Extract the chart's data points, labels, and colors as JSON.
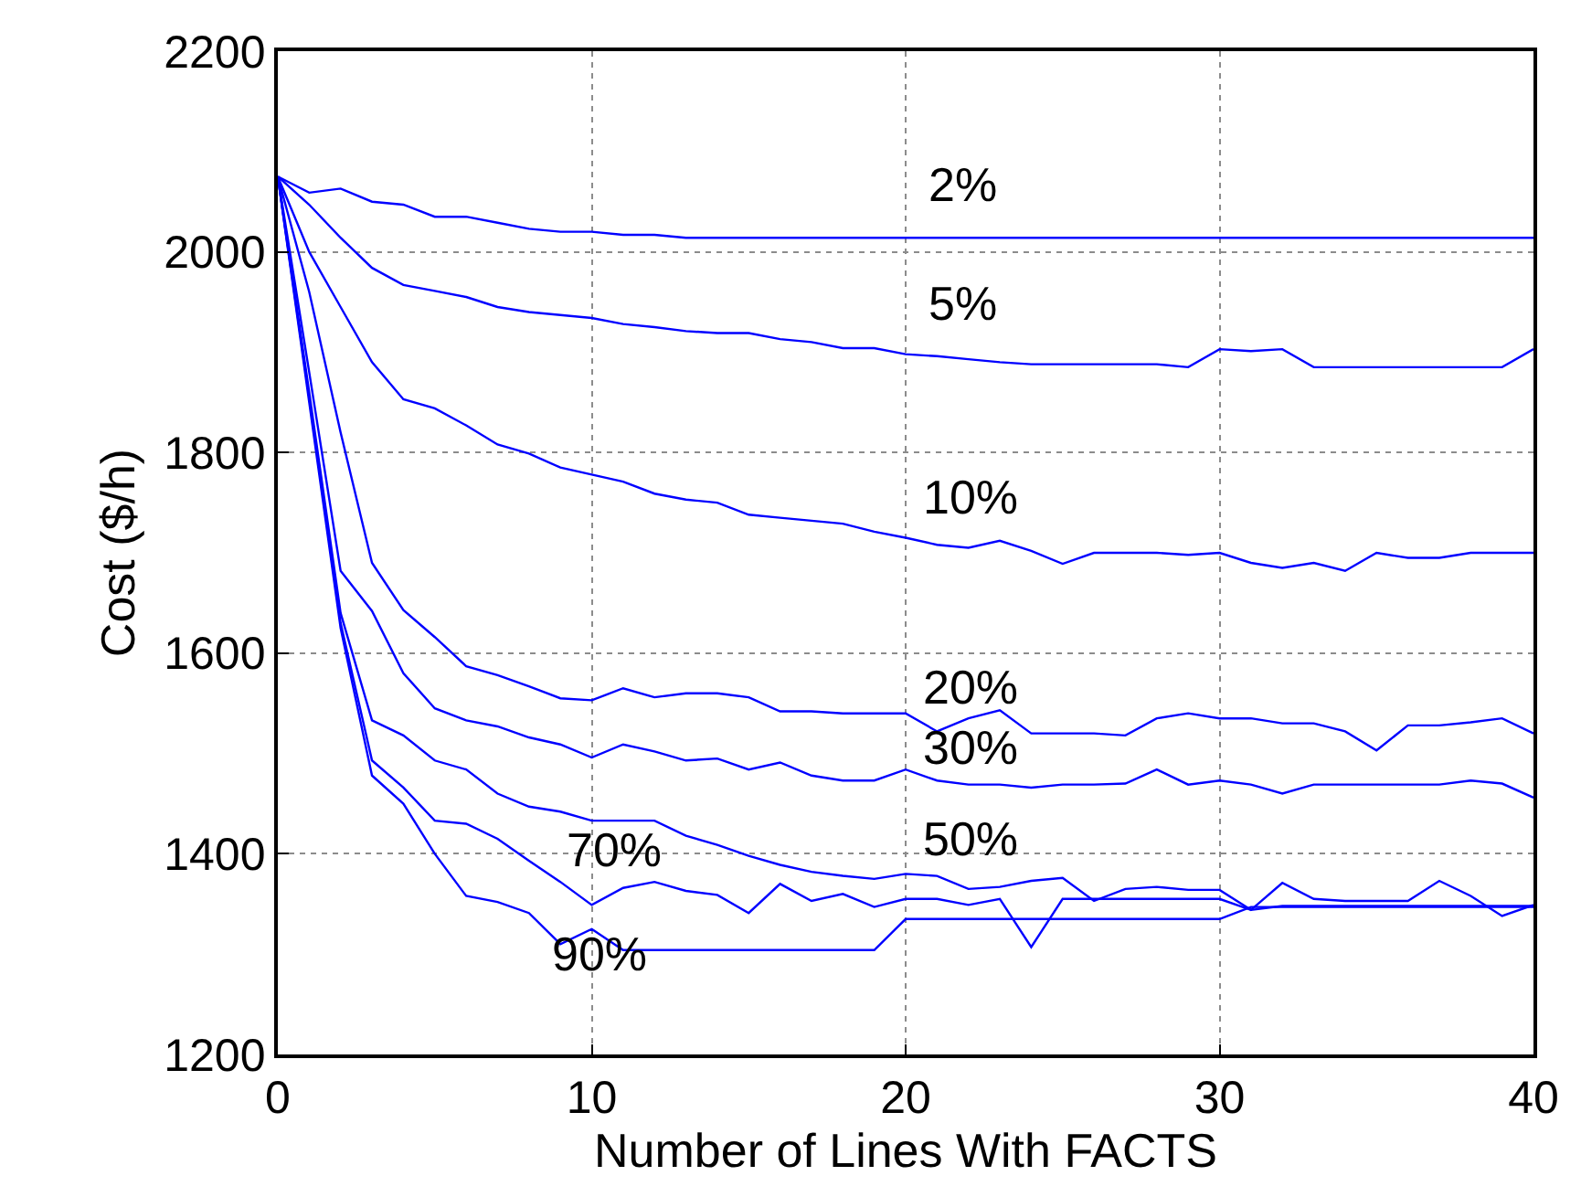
{
  "chart_data": {
    "type": "line",
    "xlabel": "Number of Lines With FACTS",
    "ylabel": "Cost ($/h)",
    "x": [
      0,
      1,
      2,
      3,
      4,
      5,
      6,
      7,
      8,
      9,
      10,
      11,
      12,
      13,
      14,
      15,
      16,
      17,
      18,
      19,
      20,
      21,
      22,
      23,
      24,
      25,
      26,
      27,
      28,
      29,
      30,
      31,
      32,
      33,
      34,
      35,
      36,
      37,
      38,
      39,
      40
    ],
    "series": [
      {
        "name": "2%",
        "color": "#0000ff",
        "values": [
          2075,
          2059,
          2063,
          2050,
          2047,
          2035,
          2035,
          2029,
          2023,
          2020,
          2020,
          2017,
          2017,
          2014,
          2014,
          2014,
          2014,
          2014,
          2014,
          2014,
          2014,
          2014,
          2014,
          2014,
          2014,
          2014,
          2014,
          2014,
          2014,
          2014,
          2014,
          2014,
          2014,
          2014,
          2014,
          2014,
          2014,
          2014,
          2014,
          2014,
          2014
        ]
      },
      {
        "name": "5%",
        "color": "#0000ff",
        "values": [
          2075,
          2047,
          2014,
          1984,
          1967,
          1961,
          1955,
          1945,
          1940,
          1937,
          1934,
          1928,
          1925,
          1921,
          1919,
          1919,
          1913,
          1910,
          1904,
          1904,
          1898,
          1896,
          1893,
          1890,
          1888,
          1888,
          1888,
          1888,
          1888,
          1885,
          1903,
          1901,
          1903,
          1885,
          1885,
          1885,
          1885,
          1885,
          1885,
          1885,
          1903
        ]
      },
      {
        "name": "10%",
        "color": "#0000ff",
        "values": [
          2075,
          2000,
          1945,
          1890,
          1853,
          1844,
          1827,
          1808,
          1799,
          1785,
          1778,
          1771,
          1759,
          1753,
          1750,
          1738,
          1735,
          1732,
          1729,
          1721,
          1715,
          1708,
          1705,
          1712,
          1702,
          1689,
          1700,
          1700,
          1700,
          1698,
          1700,
          1690,
          1685,
          1690,
          1682,
          1700,
          1695,
          1695,
          1700,
          1700,
          1700
        ]
      },
      {
        "name": "20%",
        "color": "#0000ff",
        "values": [
          2075,
          1960,
          1820,
          1690,
          1643,
          1616,
          1587,
          1578,
          1567,
          1555,
          1553,
          1565,
          1556,
          1560,
          1560,
          1556,
          1542,
          1542,
          1540,
          1540,
          1540,
          1522,
          1535,
          1543,
          1520,
          1520,
          1520,
          1518,
          1535,
          1540,
          1535,
          1535,
          1530,
          1530,
          1522,
          1503,
          1528,
          1528,
          1531,
          1535,
          1520
        ]
      },
      {
        "name": "30%",
        "color": "#0000ff",
        "values": [
          2075,
          1880,
          1682,
          1642,
          1580,
          1545,
          1533,
          1527,
          1516,
          1509,
          1496,
          1509,
          1502,
          1493,
          1495,
          1484,
          1491,
          1478,
          1473,
          1473,
          1484,
          1473,
          1469,
          1469,
          1466,
          1469,
          1469,
          1470,
          1484,
          1469,
          1473,
          1469,
          1460,
          1469,
          1469,
          1469,
          1469,
          1469,
          1473,
          1470,
          1456
        ]
      },
      {
        "name": "50%",
        "color": "#0000ff",
        "values": [
          2075,
          1860,
          1640,
          1533,
          1518,
          1493,
          1484,
          1460,
          1447,
          1442,
          1433,
          1433,
          1433,
          1418,
          1409,
          1398,
          1389,
          1382,
          1378,
          1375,
          1380,
          1378,
          1365,
          1367,
          1373,
          1376,
          1353,
          1365,
          1367,
          1364,
          1364,
          1344,
          1371,
          1355,
          1353,
          1353,
          1353,
          1373,
          1358,
          1338,
          1349
        ]
      },
      {
        "name": "70%",
        "color": "#0000ff",
        "values": [
          2075,
          1855,
          1630,
          1493,
          1466,
          1433,
          1430,
          1415,
          1393,
          1372,
          1349,
          1366,
          1372,
          1363,
          1359,
          1341,
          1370,
          1353,
          1360,
          1347,
          1355,
          1355,
          1349,
          1355,
          1307,
          1355,
          1355,
          1355,
          1355,
          1355,
          1355,
          1344,
          1348,
          1348,
          1348,
          1348,
          1348,
          1348,
          1348,
          1348,
          1348
        ]
      },
      {
        "name": "90%",
        "color": "#0000ff",
        "values": [
          2075,
          1850,
          1625,
          1478,
          1450,
          1400,
          1358,
          1352,
          1341,
          1310,
          1325,
          1304,
          1304,
          1304,
          1304,
          1304,
          1304,
          1304,
          1304,
          1304,
          1335,
          1335,
          1335,
          1335,
          1335,
          1335,
          1335,
          1335,
          1335,
          1335,
          1335,
          1347,
          1347,
          1347,
          1347,
          1347,
          1347,
          1347,
          1347,
          1347,
          1347
        ]
      }
    ],
    "xlim": [
      0,
      40
    ],
    "xticks": [
      0,
      10,
      20,
      30,
      40
    ],
    "ylim": [
      1200,
      2200
    ],
    "yticks": [
      1200,
      1400,
      1600,
      1800,
      2000,
      2200
    ],
    "grid": true,
    "legend": false,
    "marker": "none",
    "line_style": "solid"
  }
}
